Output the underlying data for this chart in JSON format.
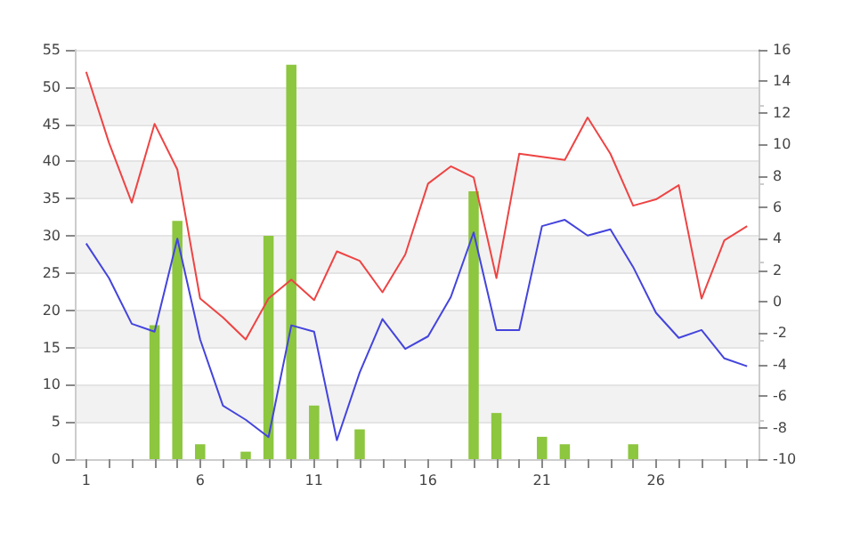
{
  "chart_data": {
    "type": "bar",
    "categories": [
      "1",
      null,
      null,
      null,
      null,
      "6",
      null,
      null,
      null,
      null,
      "11",
      null,
      null,
      null,
      null,
      "16",
      null,
      null,
      null,
      null,
      "21",
      null,
      null,
      null,
      null,
      "26",
      null,
      null,
      null,
      null
    ],
    "series": [
      {
        "color": "#8dc63f",
        "values": [
          null,
          null,
          null,
          18,
          32,
          2,
          null,
          1,
          30,
          53,
          7.2,
          null,
          4,
          null,
          null,
          null,
          null,
          36,
          6.2,
          null,
          3,
          2,
          null,
          null,
          2,
          null,
          null,
          null,
          null,
          null
        ]
      },
      {
        "type": "line",
        "axis": "y2",
        "color": "#ee4444",
        "values": [
          14.6,
          10.1,
          6.3,
          11.3,
          8.4,
          0.2,
          -1.0,
          -2.4,
          0.2,
          1.4,
          0.1,
          3.2,
          2.6,
          0.6,
          3.0,
          7.5,
          8.6,
          7.9,
          1.5,
          9.4,
          9.2,
          9.0,
          11.7,
          9.4,
          6.1,
          6.5,
          7.4,
          0.2,
          3.9,
          4.8
        ]
      },
      {
        "type": "line",
        "axis": "y2",
        "color": "#4444dd",
        "values": [
          3.7,
          1.5,
          -1.4,
          -1.9,
          4.0,
          -2.4,
          -6.6,
          -7.5,
          -8.6,
          -1.5,
          -1.9,
          -8.8,
          -4.5,
          -1.1,
          -3.0,
          -2.2,
          0.3,
          4.4,
          -1.8,
          -1.8,
          4.8,
          5.2,
          4.2,
          4.6,
          2.2,
          -0.7,
          -2.3,
          -1.8,
          -3.6,
          -4.1
        ]
      }
    ],
    "ylim": [
      0,
      55
    ],
    "yticks": [
      0,
      5,
      10,
      15,
      20,
      25,
      30,
      35,
      40,
      45,
      50,
      55
    ],
    "y2lim": [
      -10,
      16
    ],
    "y2ticks": [
      -10,
      -8,
      -6,
      -4,
      -2,
      0,
      2,
      4,
      6,
      8,
      10,
      12,
      14,
      16
    ],
    "grid": "y",
    "marker": "none",
    "line_style": "solid"
  }
}
